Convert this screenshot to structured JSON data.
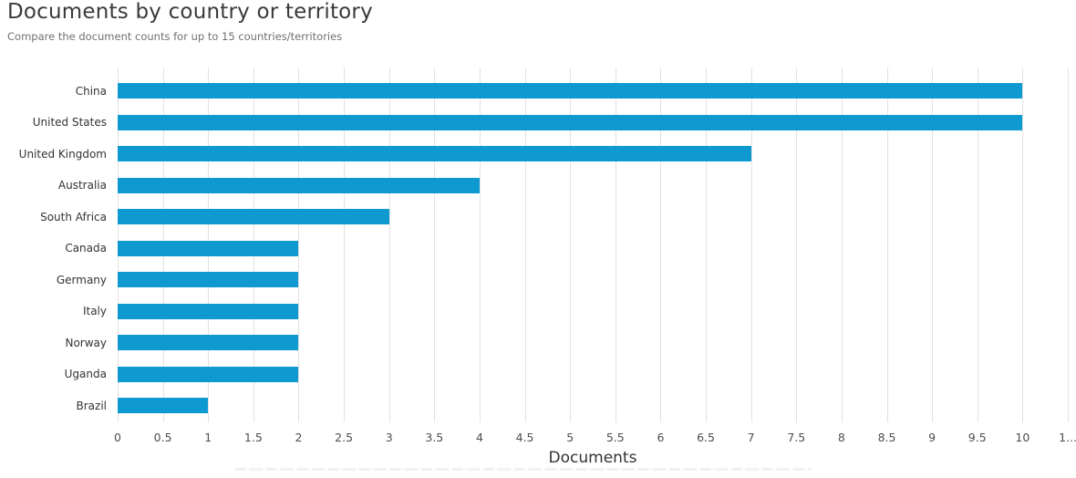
{
  "page": {
    "title": "Documents by country or territory",
    "subtitle": "Compare the document counts for up to 15 countries/territories"
  },
  "chart_data": {
    "type": "bar",
    "orientation": "horizontal",
    "title": "Documents by country or territory",
    "subtitle": "Compare the document counts for up to 15 countries/territories",
    "categories": [
      "China",
      "United States",
      "United Kingdom",
      "Australia",
      "South Africa",
      "Canada",
      "Germany",
      "Italy",
      "Norway",
      "Uganda",
      "Brazil"
    ],
    "values": [
      10,
      10,
      7,
      4,
      3,
      2,
      2,
      2,
      2,
      2,
      1
    ],
    "xlabel": "Documents",
    "ylabel": "",
    "xlim": [
      0,
      10.5
    ],
    "tick_step": 0.5,
    "tick_labels": [
      "0",
      "0.5",
      "1",
      "1.5",
      "2",
      "2.5",
      "3",
      "3.5",
      "4",
      "4.5",
      "5",
      "5.5",
      "6",
      "6.5",
      "7",
      "7.5",
      "8",
      "8.5",
      "9",
      "9.5",
      "10",
      "1..."
    ],
    "grid": true,
    "legend": "none",
    "bar_color": "#0E9AD1",
    "gridline_color": "#e1e1e1",
    "title_color": "#3a3a3a",
    "subtitle_color": "#707070",
    "label_color": "#333333",
    "tick_color": "#4d4d4d"
  }
}
